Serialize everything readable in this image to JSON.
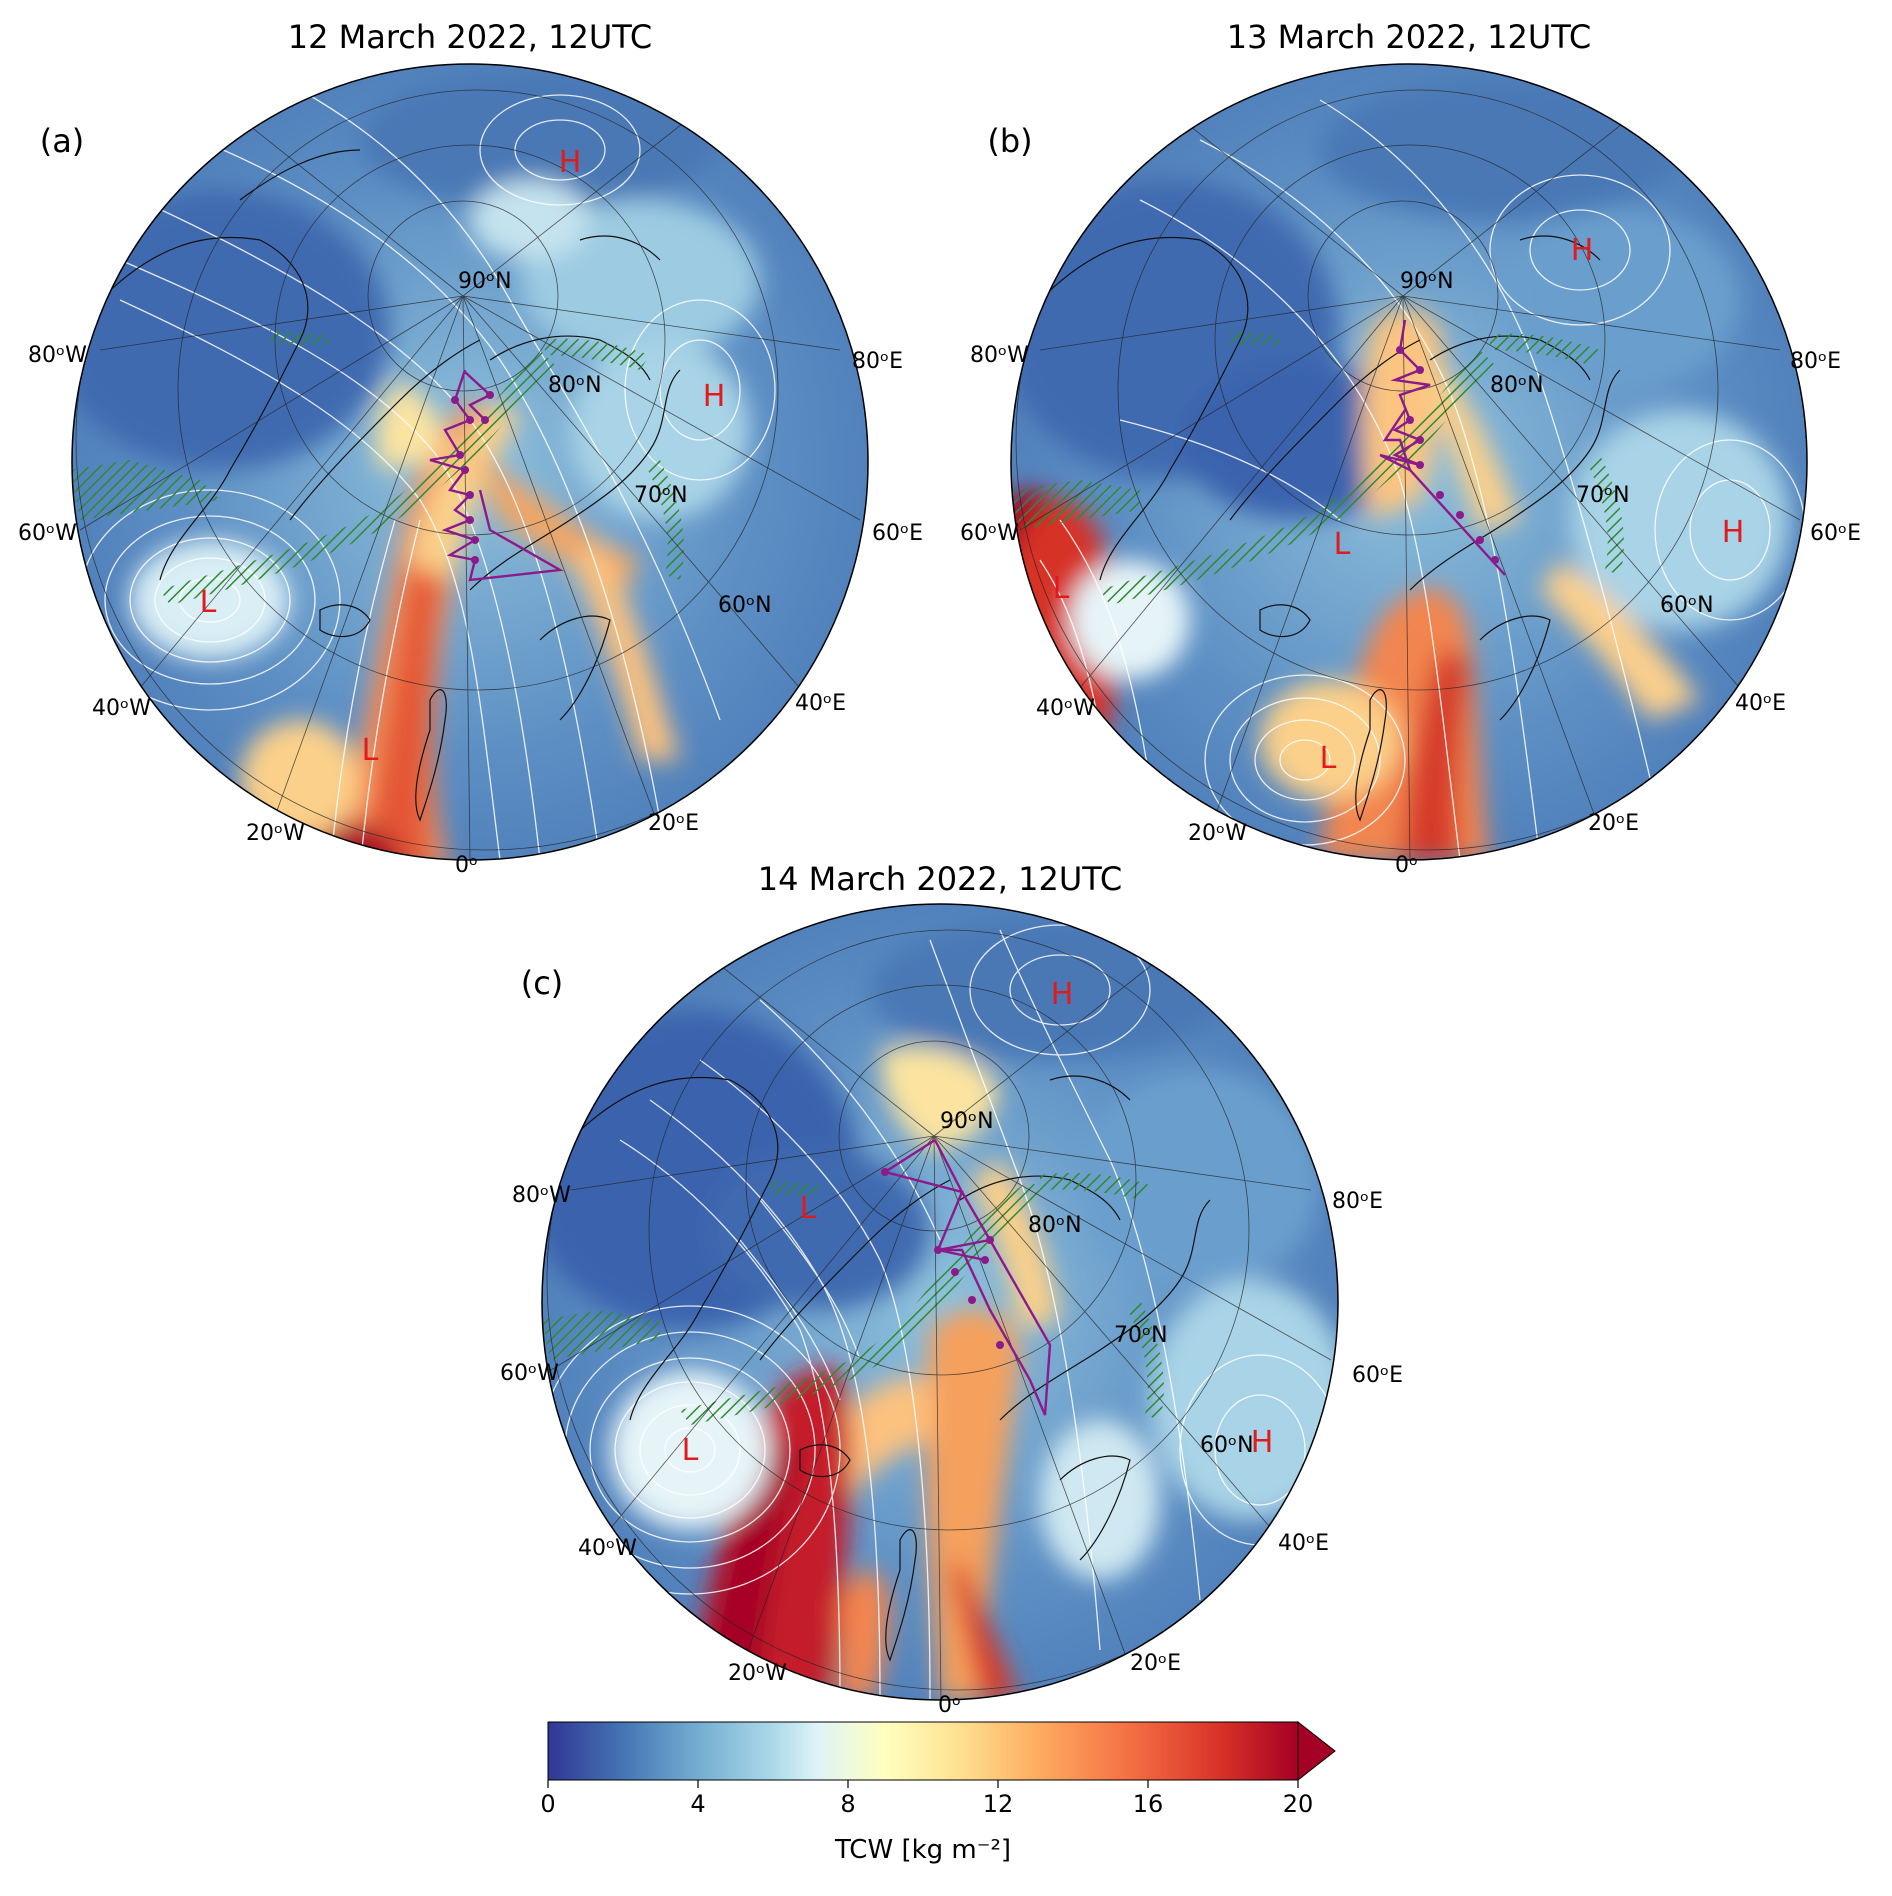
{
  "panels": [
    {
      "id": "a",
      "title": "12 March 2022, 12UTC",
      "label": "(a)",
      "lat_labels": [
        "90ᵒN",
        "80ᵒN",
        "70ᵒN",
        "60ᵒN"
      ],
      "lon_labels": [
        "80ᵒW",
        "60ᵒW",
        "40ᵒW",
        "20ᵒW",
        "0ᵒ",
        "20ᵒE",
        "40ᵒE",
        "60ᵒE",
        "80ᵒE"
      ],
      "pressure_centers": [
        "H",
        "H",
        "L",
        "L"
      ]
    },
    {
      "id": "b",
      "title": "13 March 2022, 12UTC",
      "label": "(b)",
      "lat_labels": [
        "90ᵒN",
        "80ᵒN",
        "70ᵒN",
        "60ᵒN"
      ],
      "lon_labels": [
        "80ᵒW",
        "60ᵒW",
        "40ᵒW",
        "20ᵒW",
        "0ᵒ",
        "20ᵒE",
        "40ᵒE",
        "60ᵒE",
        "80ᵒE"
      ],
      "pressure_centers": [
        "H",
        "H",
        "L",
        "L",
        "L"
      ]
    },
    {
      "id": "c",
      "title": "14 March 2022, 12UTC",
      "label": "(c)",
      "lat_labels": [
        "90ᵒN",
        "80ᵒN",
        "70ᵒN",
        "60ᵒN"
      ],
      "lon_labels": [
        "80ᵒW",
        "60ᵒW",
        "40ᵒW",
        "20ᵒW",
        "0ᵒ",
        "20ᵒE",
        "40ᵒE",
        "60ᵒE",
        "80ᵒE"
      ],
      "pressure_centers": [
        "H",
        "H",
        "L",
        "L"
      ]
    }
  ],
  "colorbar": {
    "label": "TCW [kg m⁻²]",
    "ticks": [
      "0",
      "4",
      "8",
      "12",
      "16",
      "20"
    ],
    "range": [
      0,
      20
    ],
    "colors": [
      "#313695",
      "#4575b4",
      "#74add1",
      "#abd9e9",
      "#e0f3f8",
      "#ffffbf",
      "#fee090",
      "#fdae61",
      "#f46d43",
      "#d73027",
      "#a50026"
    ]
  },
  "colors": {
    "pressure_label": "#e31a1c",
    "flight_track": "#8b1a8b",
    "sea_ice_hatch": "#2e8b2e",
    "isobar": "#ffffff",
    "coastline": "#111111"
  }
}
